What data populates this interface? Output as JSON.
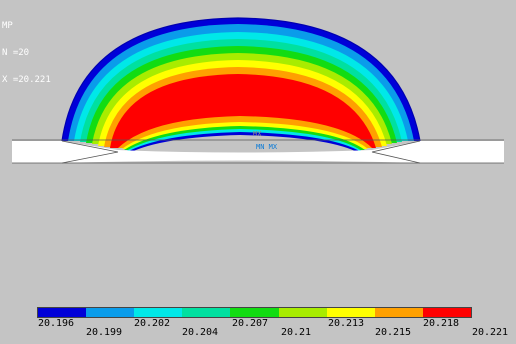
{
  "legend_header": {
    "line1": "MP",
    "line2": "N =20",
    "line3": "X =20.221"
  },
  "node_labels": {
    "mn": "MX",
    "mx": "MN MX",
    "top": "MX"
  },
  "colorbar": {
    "colors": [
      "#0000d8",
      "#0a9cea",
      "#00e8e8",
      "#00e0a0",
      "#12dc12",
      "#a8ec00",
      "#ffff00",
      "#ffa000",
      "#ff0000"
    ],
    "ticks": [
      "20.196",
      "20.199",
      "20.202",
      "20.204",
      "20.207",
      "20.21",
      "20.213",
      "20.215",
      "20.218",
      "20.221"
    ]
  },
  "colors": {
    "background": "#c4c4c4",
    "band_blue": "#0000d8",
    "band_red": "#ff0000",
    "lens": "#ffffff"
  }
}
